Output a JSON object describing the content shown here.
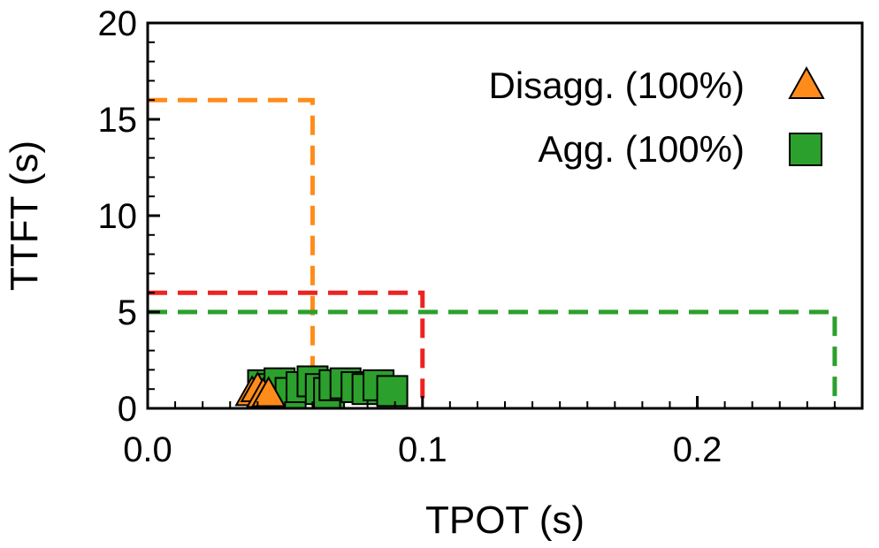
{
  "chart_data": {
    "type": "scatter",
    "xlabel": "TPOT (s)",
    "ylabel": "TTFT (s)",
    "xlim": [
      0,
      0.26
    ],
    "ylim": [
      0,
      20
    ],
    "x_ticks": [
      {
        "value": 0.0,
        "label": "0.0"
      },
      {
        "value": 0.1,
        "label": "0.1"
      },
      {
        "value": 0.2,
        "label": "0.2"
      }
    ],
    "y_ticks": [
      {
        "value": 0,
        "label": "0"
      },
      {
        "value": 5,
        "label": "5"
      },
      {
        "value": 10,
        "label": "10"
      },
      {
        "value": 15,
        "label": "15"
      },
      {
        "value": 20,
        "label": "20"
      }
    ],
    "slo_boxes": [
      {
        "tpot": 0.06,
        "ttft": 16,
        "color": "#ff8c1a"
      },
      {
        "tpot": 0.1,
        "ttft": 6,
        "color": "#ee2222"
      },
      {
        "tpot": 0.25,
        "ttft": 5,
        "color": "#2ca02c"
      }
    ],
    "series": [
      {
        "name": "Disagg. (100%)",
        "marker": "triangle",
        "color": "#ff8c1a",
        "points": [
          {
            "x": 0.038,
            "y": 0.9
          },
          {
            "x": 0.04,
            "y": 1.1
          },
          {
            "x": 0.042,
            "y": 0.8
          },
          {
            "x": 0.044,
            "y": 0.85
          }
        ]
      },
      {
        "name": "Agg. (100%)",
        "marker": "square",
        "color": "#2ca02c",
        "points": [
          {
            "x": 0.042,
            "y": 1.2
          },
          {
            "x": 0.046,
            "y": 1.0
          },
          {
            "x": 0.048,
            "y": 1.3
          },
          {
            "x": 0.052,
            "y": 0.8
          },
          {
            "x": 0.056,
            "y": 1.1
          },
          {
            "x": 0.06,
            "y": 1.4
          },
          {
            "x": 0.063,
            "y": 1.0
          },
          {
            "x": 0.066,
            "y": 0.8
          },
          {
            "x": 0.068,
            "y": 1.2
          },
          {
            "x": 0.072,
            "y": 1.3
          },
          {
            "x": 0.076,
            "y": 1.1
          },
          {
            "x": 0.08,
            "y": 1.0
          },
          {
            "x": 0.084,
            "y": 1.2
          },
          {
            "x": 0.089,
            "y": 0.9
          }
        ]
      }
    ]
  }
}
